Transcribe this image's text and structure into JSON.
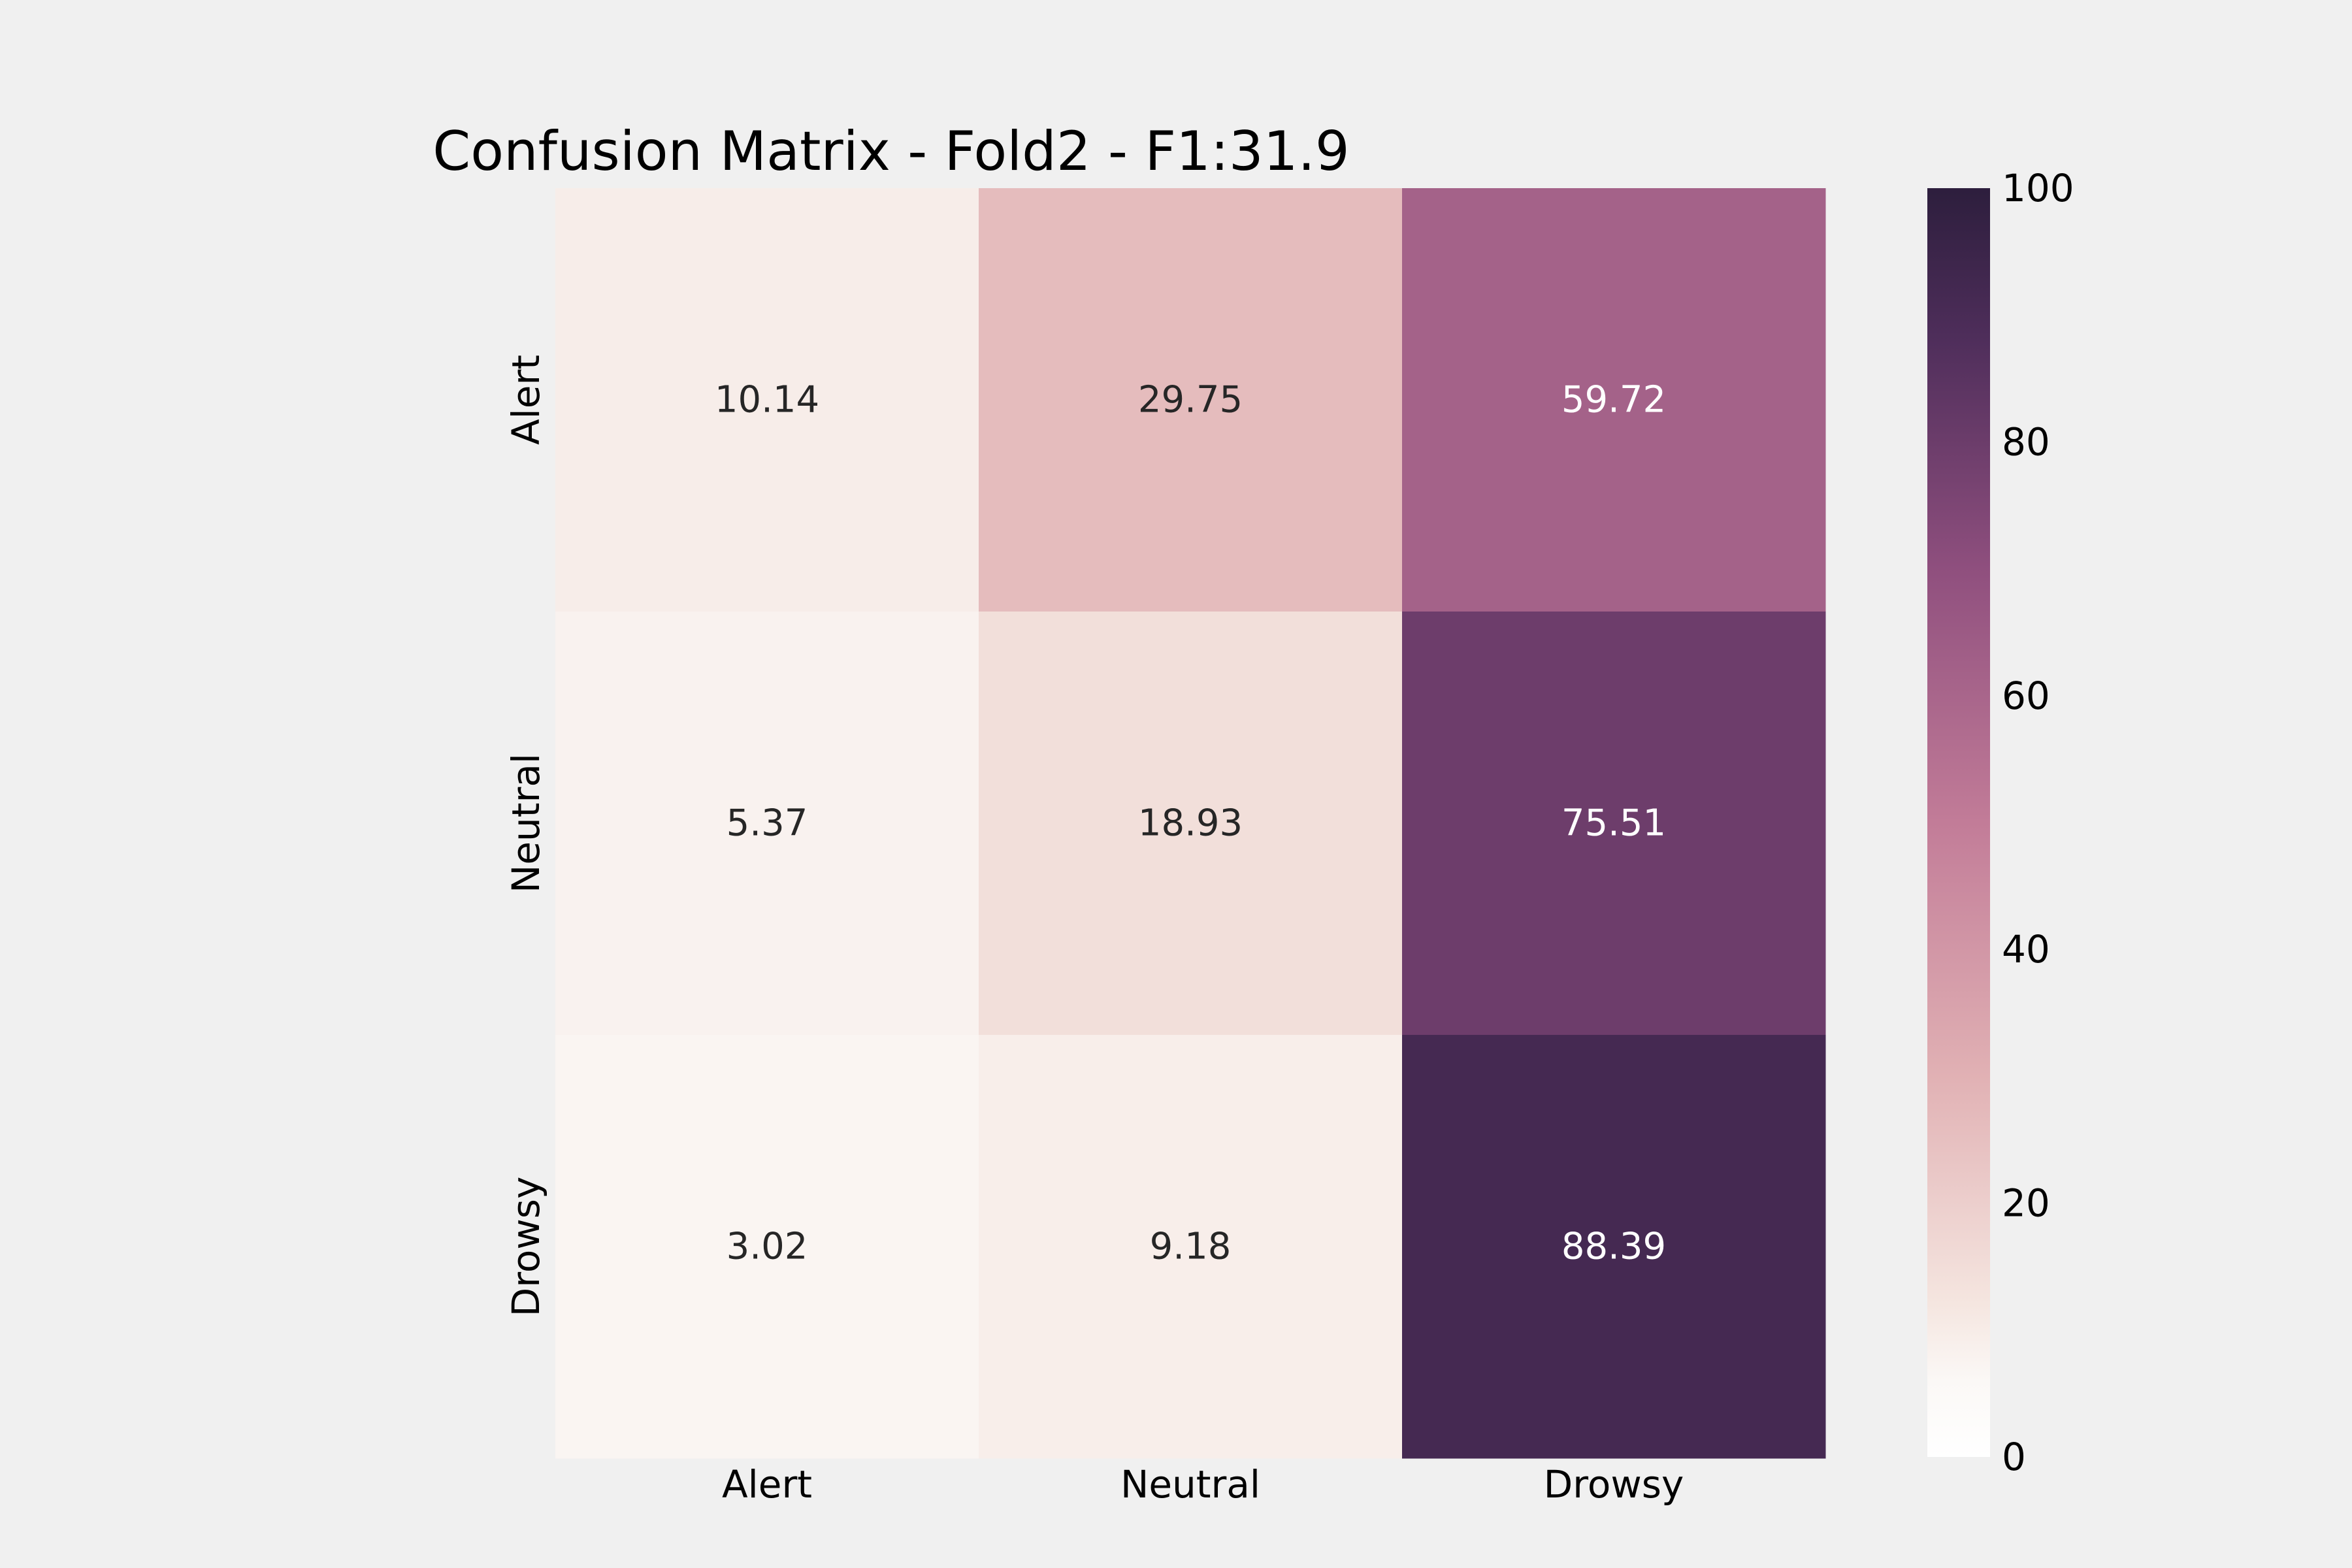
{
  "chart_data": {
    "type": "heatmap",
    "title": "Confusion Matrix - Fold2 - F1:31.9",
    "xlabel": "",
    "ylabel": "",
    "x_categories": [
      "Alert",
      "Neutral",
      "Drowsy"
    ],
    "y_categories": [
      "Alert",
      "Neutral",
      "Drowsy"
    ],
    "values": [
      [
        10.14,
        29.75,
        59.72
      ],
      [
        5.37,
        18.93,
        75.51
      ],
      [
        3.02,
        9.18,
        88.39
      ]
    ],
    "cell_labels": [
      [
        "10.14",
        "29.75",
        "59.72"
      ],
      [
        "5.37",
        "18.93",
        "75.51"
      ],
      [
        "3.02",
        "9.18",
        "88.39"
      ]
    ],
    "colorbar": {
      "min": 0,
      "max": 100,
      "ticks": [
        "0",
        "20",
        "40",
        "60",
        "80",
        "100"
      ]
    },
    "colors": {
      "background": "#f0f0f0",
      "scale": [
        "#fbf8f6",
        "#f5e6e0",
        "#e1b1b4",
        "#c27c98",
        "#8f4f7e",
        "#4f2e5b",
        "#2d1e3d"
      ],
      "label_dark": "#262626",
      "label_light": "#ffffff"
    },
    "grid": false,
    "legend": "colorbar-right"
  }
}
